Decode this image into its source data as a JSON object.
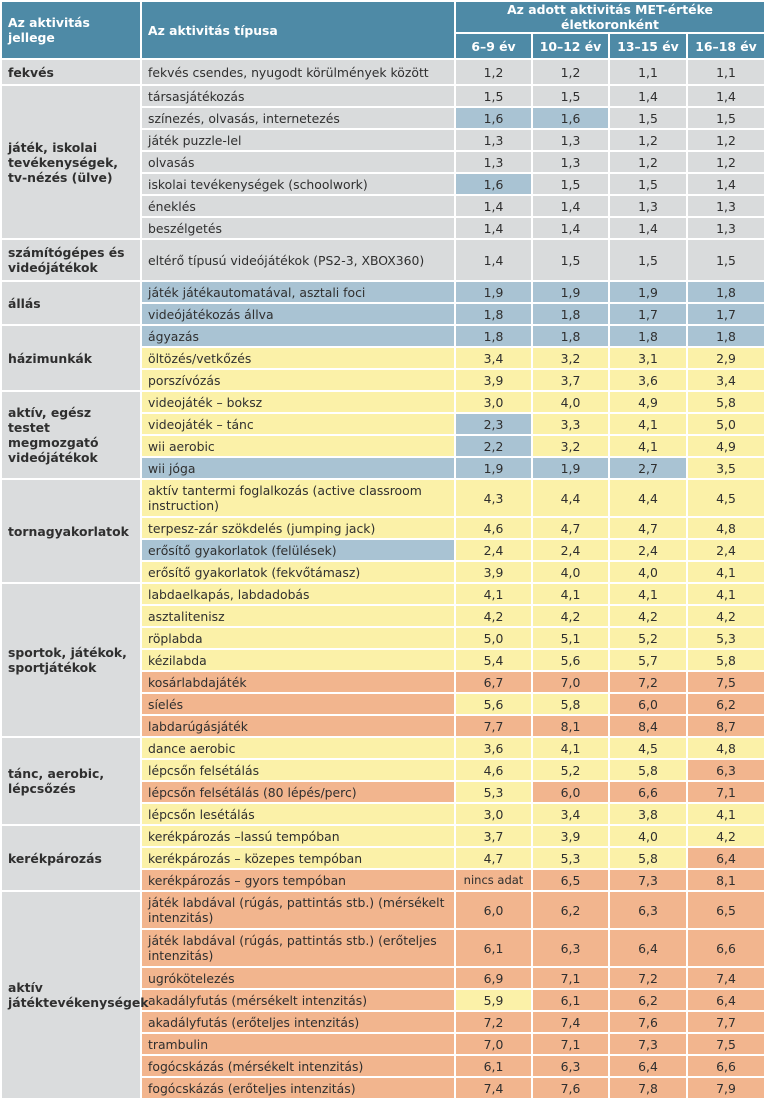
{
  "header": {
    "col_category": "Az aktivitás jellege",
    "col_type": "Az aktivitás típusa",
    "col_met": "Az adott aktivitás MET-értéke életkoronként",
    "ages": [
      "6–9 év",
      "10–12 év",
      "13–15 év",
      "16–18 év"
    ]
  },
  "colors": {
    "header": "#4e8aa6",
    "gray": "#d9dbdc",
    "blue": "#a9c3d3",
    "yellow": "#fbf1a8",
    "orange": "#f2b58e"
  },
  "groups": [
    {
      "category": "fekvés",
      "rows": [
        {
          "activity": "fekvés csendes, nyugodt körülmények között",
          "values": [
            "1,2",
            "1,2",
            "1,1",
            "1,1"
          ],
          "colors": [
            "gr",
            "gr",
            "gr",
            "gr",
            "gr"
          ]
        }
      ]
    },
    {
      "category": "játék, iskolai tevékenységek, tv-nézés (ülve)",
      "rows": [
        {
          "activity": "társasjátékozás",
          "values": [
            "1,5",
            "1,5",
            "1,4",
            "1,4"
          ],
          "colors": [
            "gr",
            "gr",
            "gr",
            "gr",
            "gr"
          ]
        },
        {
          "activity": "színezés, olvasás, internetezés",
          "values": [
            "1,6",
            "1,6",
            "1,5",
            "1,5"
          ],
          "colors": [
            "gr",
            "bl",
            "bl",
            "gr",
            "gr"
          ]
        },
        {
          "activity": "játék puzzle-lel",
          "values": [
            "1,3",
            "1,3",
            "1,2",
            "1,2"
          ],
          "colors": [
            "gr",
            "gr",
            "gr",
            "gr",
            "gr"
          ]
        },
        {
          "activity": "olvasás",
          "values": [
            "1,3",
            "1,3",
            "1,2",
            "1,2"
          ],
          "colors": [
            "gr",
            "gr",
            "gr",
            "gr",
            "gr"
          ]
        },
        {
          "activity": "iskolai tevékenységek (schoolwork)",
          "values": [
            "1,6",
            "1,5",
            "1,5",
            "1,4"
          ],
          "colors": [
            "gr",
            "bl",
            "gr",
            "gr",
            "gr"
          ]
        },
        {
          "activity": "éneklés",
          "values": [
            "1,4",
            "1,4",
            "1,3",
            "1,3"
          ],
          "colors": [
            "gr",
            "gr",
            "gr",
            "gr",
            "gr"
          ]
        },
        {
          "activity": "beszélgetés",
          "values": [
            "1,4",
            "1,4",
            "1,4",
            "1,3"
          ],
          "colors": [
            "gr",
            "gr",
            "gr",
            "gr",
            "gr"
          ]
        }
      ]
    },
    {
      "category": "számítógépes és videójátékok",
      "rows": [
        {
          "activity": "eltérő típusú videójátékok (PS2-3, XBOX360)",
          "values": [
            "1,4",
            "1,5",
            "1,5",
            "1,5"
          ],
          "colors": [
            "gr",
            "gr",
            "gr",
            "gr",
            "gr"
          ]
        }
      ]
    },
    {
      "category": "állás",
      "rows": [
        {
          "activity": "játék játékautomatával, asztali foci",
          "values": [
            "1,9",
            "1,9",
            "1,9",
            "1,8"
          ],
          "colors": [
            "bl",
            "bl",
            "bl",
            "bl",
            "bl"
          ]
        },
        {
          "activity": "videójátékozás állva",
          "values": [
            "1,8",
            "1,8",
            "1,7",
            "1,7"
          ],
          "colors": [
            "bl",
            "bl",
            "bl",
            "bl",
            "bl"
          ]
        }
      ]
    },
    {
      "category": "házimunkák",
      "rows": [
        {
          "activity": "ágyazás",
          "values": [
            "1,8",
            "1,8",
            "1,8",
            "1,8"
          ],
          "colors": [
            "bl",
            "bl",
            "bl",
            "bl",
            "bl"
          ]
        },
        {
          "activity": "öltözés/vetkőzés",
          "values": [
            "3,4",
            "3,2",
            "3,1",
            "2,9"
          ],
          "colors": [
            "ye",
            "ye",
            "ye",
            "ye",
            "ye"
          ]
        },
        {
          "activity": "porszívózás",
          "values": [
            "3,9",
            "3,7",
            "3,6",
            "3,4"
          ],
          "colors": [
            "ye",
            "ye",
            "ye",
            "ye",
            "ye"
          ]
        }
      ]
    },
    {
      "category": "aktív, egész testet megmozgató videójátékok",
      "rows": [
        {
          "activity": "videojáték – boksz",
          "values": [
            "3,0",
            "4,0",
            "4,9",
            "5,8"
          ],
          "colors": [
            "ye",
            "ye",
            "ye",
            "ye",
            "ye"
          ]
        },
        {
          "activity": "videojáték – tánc",
          "values": [
            "2,3",
            "3,3",
            "4,1",
            "5,0"
          ],
          "colors": [
            "ye",
            "bl",
            "ye",
            "ye",
            "ye"
          ]
        },
        {
          "activity": "wii aerobic",
          "values": [
            "2,2",
            "3,2",
            "4,1",
            "4,9"
          ],
          "colors": [
            "ye",
            "bl",
            "ye",
            "ye",
            "ye"
          ]
        },
        {
          "activity": "wii jóga",
          "values": [
            "1,9",
            "1,9",
            "2,7",
            "3,5"
          ],
          "colors": [
            "bl",
            "bl",
            "bl",
            "bl",
            "ye"
          ]
        }
      ]
    },
    {
      "category": "tornagyakorlatok",
      "rows": [
        {
          "activity": "aktív tantermi foglalkozás (active classroom instruction)",
          "values": [
            "4,3",
            "4,4",
            "4,4",
            "4,5"
          ],
          "colors": [
            "ye",
            "ye",
            "ye",
            "ye",
            "ye"
          ]
        },
        {
          "activity": "terpesz-zár szökdelés (jumping jack)",
          "values": [
            "4,6",
            "4,7",
            "4,7",
            "4,8"
          ],
          "colors": [
            "ye",
            "ye",
            "ye",
            "ye",
            "ye"
          ]
        },
        {
          "activity": "erősítő gyakorlatok (felülések)",
          "values": [
            "2,4",
            "2,4",
            "2,4",
            "2,4"
          ],
          "colors": [
            "bl",
            "ye",
            "ye",
            "ye",
            "ye"
          ]
        },
        {
          "activity": "erősítő gyakorlatok (fekvőtámasz)",
          "values": [
            "3,9",
            "4,0",
            "4,0",
            "4,1"
          ],
          "colors": [
            "ye",
            "ye",
            "ye",
            "ye",
            "ye"
          ]
        }
      ]
    },
    {
      "category": "sportok, játékok, sportjátékok",
      "rows": [
        {
          "activity": "labdaelkapás, labdadobás",
          "values": [
            "4,1",
            "4,1",
            "4,1",
            "4,1"
          ],
          "colors": [
            "ye",
            "ye",
            "ye",
            "ye",
            "ye"
          ]
        },
        {
          "activity": "asztalitenisz",
          "values": [
            "4,2",
            "4,2",
            "4,2",
            "4,2"
          ],
          "colors": [
            "ye",
            "ye",
            "ye",
            "ye",
            "ye"
          ]
        },
        {
          "activity": "röplabda",
          "values": [
            "5,0",
            "5,1",
            "5,2",
            "5,3"
          ],
          "colors": [
            "ye",
            "ye",
            "ye",
            "ye",
            "ye"
          ]
        },
        {
          "activity": "kézilabda",
          "values": [
            "5,4",
            "5,6",
            "5,7",
            "5,8"
          ],
          "colors": [
            "ye",
            "ye",
            "ye",
            "ye",
            "ye"
          ]
        },
        {
          "activity": "kosárlabdajáték",
          "values": [
            "6,7",
            "7,0",
            "7,2",
            "7,5"
          ],
          "colors": [
            "or",
            "or",
            "or",
            "or",
            "or"
          ]
        },
        {
          "activity": "síelés",
          "values": [
            "5,6",
            "5,8",
            "6,0",
            "6,2"
          ],
          "colors": [
            "or",
            "ye",
            "ye",
            "or",
            "or"
          ]
        },
        {
          "activity": "labdarúgásjáték",
          "values": [
            "7,7",
            "8,1",
            "8,4",
            "8,7"
          ],
          "colors": [
            "or",
            "or",
            "or",
            "or",
            "or"
          ]
        }
      ]
    },
    {
      "category": "tánc, aerobic, lépcsőzés",
      "rows": [
        {
          "activity": "dance aerobic",
          "values": [
            "3,6",
            "4,1",
            "4,5",
            "4,8"
          ],
          "colors": [
            "ye",
            "ye",
            "ye",
            "ye",
            "ye"
          ]
        },
        {
          "activity": "lépcsőn felsétálás",
          "values": [
            "4,6",
            "5,2",
            "5,8",
            "6,3"
          ],
          "colors": [
            "ye",
            "ye",
            "ye",
            "ye",
            "or"
          ]
        },
        {
          "activity": "lépcsőn felsétálás (80 lépés/perc)",
          "values": [
            "5,3",
            "6,0",
            "6,6",
            "7,1"
          ],
          "colors": [
            "or",
            "ye",
            "or",
            "or",
            "or"
          ]
        },
        {
          "activity": "lépcsőn lesétálás",
          "values": [
            "3,0",
            "3,4",
            "3,8",
            "4,1"
          ],
          "colors": [
            "ye",
            "ye",
            "ye",
            "ye",
            "ye"
          ]
        }
      ]
    },
    {
      "category": "kerékpározás",
      "rows": [
        {
          "activity": "kerékpározás –lassú tempóban",
          "values": [
            "3,7",
            "3,9",
            "4,0",
            "4,2"
          ],
          "colors": [
            "ye",
            "ye",
            "ye",
            "ye",
            "ye"
          ]
        },
        {
          "activity": "kerékpározás – közepes tempóban",
          "values": [
            "4,7",
            "5,3",
            "5,8",
            "6,4"
          ],
          "colors": [
            "ye",
            "ye",
            "ye",
            "ye",
            "or"
          ]
        },
        {
          "activity": "kerékpározás – gyors tempóban",
          "values": [
            "nincs adat",
            "6,5",
            "7,3",
            "8,1"
          ],
          "colors": [
            "or",
            "or",
            "or",
            "or",
            "or"
          ]
        }
      ]
    },
    {
      "category": "aktív játéktevékenységek",
      "rows": [
        {
          "activity": "játék labdával (rúgás, pattintás stb.) (mérsékelt intenzitás)",
          "values": [
            "6,0",
            "6,2",
            "6,3",
            "6,5"
          ],
          "colors": [
            "or",
            "or",
            "or",
            "or",
            "or"
          ]
        },
        {
          "activity": "játék labdával (rúgás, pattintás stb.) (erőteljes intenzitás)",
          "values": [
            "6,1",
            "6,3",
            "6,4",
            "6,6"
          ],
          "colors": [
            "or",
            "or",
            "or",
            "or",
            "or"
          ]
        },
        {
          "activity": "ugrókötelezés",
          "values": [
            "6,9",
            "7,1",
            "7,2",
            "7,4"
          ],
          "colors": [
            "or",
            "or",
            "or",
            "or",
            "or"
          ]
        },
        {
          "activity": "akadályfutás (mérsékelt intenzitás)",
          "values": [
            "5,9",
            "6,1",
            "6,2",
            "6,4"
          ],
          "colors": [
            "or",
            "ye",
            "or",
            "or",
            "or"
          ]
        },
        {
          "activity": "akadályfutás (erőteljes intenzitás)",
          "values": [
            "7,2",
            "7,4",
            "7,6",
            "7,7"
          ],
          "colors": [
            "or",
            "or",
            "or",
            "or",
            "or"
          ]
        },
        {
          "activity": "trambulin",
          "values": [
            "7,0",
            "7,1",
            "7,3",
            "7,5"
          ],
          "colors": [
            "or",
            "or",
            "or",
            "or",
            "or"
          ]
        },
        {
          "activity": "fogócskázás (mérsékelt intenzitás)",
          "values": [
            "6,1",
            "6,3",
            "6,4",
            "6,6"
          ],
          "colors": [
            "or",
            "or",
            "or",
            "or",
            "or"
          ]
        },
        {
          "activity": "fogócskázás (erőteljes intenzitás)",
          "values": [
            "7,4",
            "7,6",
            "7,8",
            "7,9"
          ],
          "colors": [
            "or",
            "or",
            "or",
            "or",
            "or"
          ]
        }
      ]
    }
  ]
}
